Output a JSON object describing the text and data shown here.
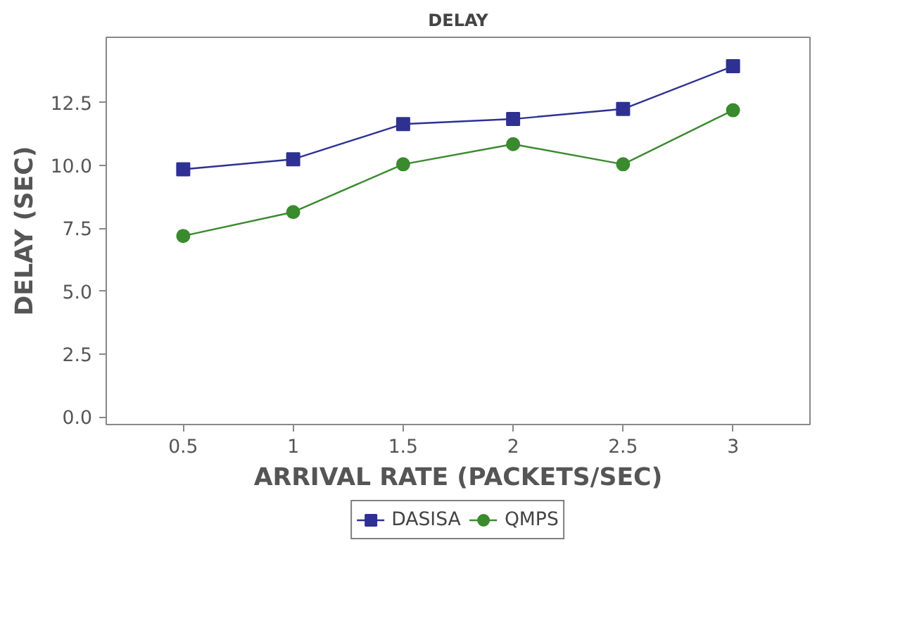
{
  "chart_data": {
    "type": "line",
    "title": "DELAY",
    "xlabel": "ARRIVAL RATE (PACKETS/SEC)",
    "ylabel": "DELAY (SEC)",
    "x": [
      0.5,
      1,
      1.5,
      2,
      2.5,
      3
    ],
    "series": [
      {
        "name": "DASISA",
        "color": "#2e3192",
        "marker": "square",
        "values": [
          9.85,
          10.25,
          11.65,
          11.85,
          12.25,
          13.95
        ]
      },
      {
        "name": "QMPS",
        "color": "#3a8a2e",
        "marker": "circle",
        "values": [
          7.2,
          8.15,
          10.05,
          10.85,
          10.05,
          12.2
        ]
      }
    ],
    "xlim": [
      0.15,
      3.35
    ],
    "ylim": [
      -0.3,
      15.1
    ],
    "xticks": [
      0.5,
      1,
      1.5,
      2,
      2.5,
      3
    ],
    "yticks": [
      {
        "value": 0,
        "label": "0.0"
      },
      {
        "value": 2.5,
        "label": "2.5"
      },
      {
        "value": 5,
        "label": "5.0"
      },
      {
        "value": 7.5,
        "label": "7.5"
      },
      {
        "value": 10,
        "label": "10.0"
      },
      {
        "value": 12.5,
        "label": "12.5"
      }
    ],
    "grid": false,
    "legend": "bottom",
    "line_style": "solid"
  }
}
